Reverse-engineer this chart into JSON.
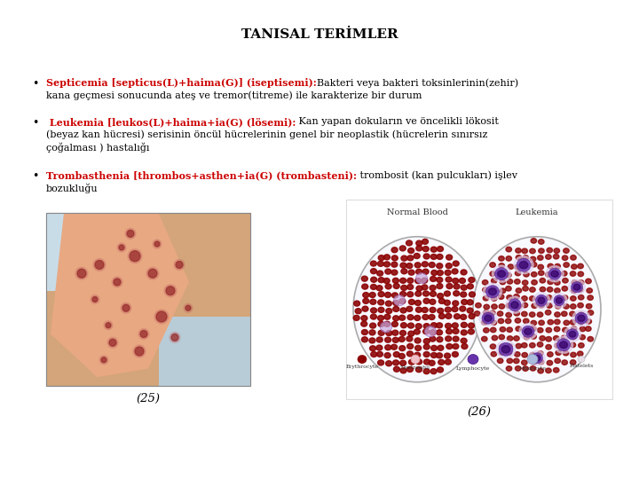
{
  "title": "TANISAL TERİMLER",
  "title_color": "#000000",
  "title_fontsize": 11,
  "background_color": "#ffffff",
  "red_color": "#cc0000",
  "black_color": "#000000",
  "bullet1_red": "Septicemia [septicus(L)+haima(G)] (iseptisemi):",
  "bullet1_black1": "Bakteri veya bakteri toksinlerinin(zehir)",
  "bullet1_black2": "kana geçmesi sonucunda ateş ve tremor(titreme) ile karakterize bir durum",
  "bullet2_red": " Leukemia [leukos(L)+haima+ia(G) (lösemi):",
  "bullet2_black1": " Kan yapan dokuların ve öncelikli lökosit",
  "bullet2_black2": "(beyaz kan hücresi) serisinin öncül hücrelerinin genel bir neoplastik (hücrelerin sınırsız",
  "bullet2_black3": "çoğalması ) hastalığı",
  "bullet3_red": "Trombasthenia [thrombos+asthen+ia(G) (trombasteni):",
  "bullet3_black1": " trombosit (kan pulcukları) işlev",
  "bullet3_black2": "bozukluğu",
  "caption1": "(25)",
  "caption2": "(26)",
  "fs": 8.0
}
